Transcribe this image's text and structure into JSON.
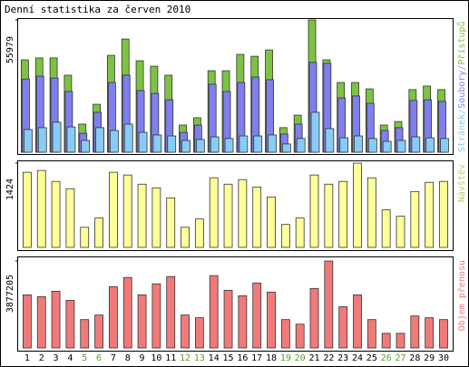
{
  "chart_data": [
    {
      "type": "bar",
      "title": "Denní statistika za červen 2010",
      "legend_separator": "/",
      "ylim": [
        0,
        55979
      ],
      "yticks": [
        55979
      ],
      "series": [
        {
          "name": "Přístupů",
          "color": "#7dc242",
          "values": [
            39100,
            39900,
            39900,
            32600,
            11900,
            20300,
            41000,
            47900,
            38700,
            36400,
            32600,
            11500,
            14600,
            34500,
            34500,
            41400,
            40600,
            43300,
            10400,
            15700,
            55979,
            39100,
            29500,
            29500,
            26800,
            11500,
            13000,
            26500,
            28000,
            26500
          ]
        },
        {
          "name": "Soubory",
          "color": "#7f7ff0",
          "values": [
            31000,
            32200,
            31400,
            25700,
            8000,
            16900,
            29500,
            32600,
            26100,
            24900,
            22200,
            8400,
            11500,
            28800,
            25700,
            29500,
            31800,
            30700,
            7700,
            11900,
            38000,
            37600,
            23000,
            23800,
            20700,
            9200,
            10400,
            21900,
            22200,
            21500
          ]
        },
        {
          "name": "Stránek",
          "color": "#88ccf4",
          "values": [
            9600,
            10400,
            12700,
            10700,
            5000,
            10400,
            9200,
            11900,
            8400,
            7300,
            6900,
            5000,
            5400,
            6500,
            5800,
            6900,
            6900,
            7300,
            3500,
            5800,
            16900,
            10000,
            6100,
            6900,
            5800,
            4600,
            5000,
            6500,
            6100,
            5800
          ]
        }
      ]
    },
    {
      "type": "bar",
      "ylim": [
        0,
        1424
      ],
      "yticks": [
        1424
      ],
      "series": [
        {
          "name": "Návštěv",
          "color": "#ffff99",
          "label_color": "#c8c860",
          "values": [
            1269,
            1300,
            1115,
            991,
            340,
            496,
            1269,
            1223,
            1068,
            1006,
            836,
            340,
            480,
            1176,
            1068,
            1145,
            1021,
            852,
            387,
            496,
            1223,
            1068,
            1115,
            1424,
            1176,
            635,
            526,
            944,
            1099,
            1115
          ]
        }
      ]
    },
    {
      "type": "bar",
      "ylim": [
        0,
        3877205
      ],
      "yticks": [
        3877205
      ],
      "categories": [
        "1",
        "2",
        "3",
        "4",
        "5",
        "6",
        "7",
        "8",
        "9",
        "10",
        "11",
        "12",
        "13",
        "14",
        "15",
        "16",
        "17",
        "18",
        "19",
        "20",
        "21",
        "22",
        "23",
        "24",
        "25",
        "26",
        "27",
        "28",
        "29",
        "30"
      ],
      "category_colors": [
        "#000",
        "#000",
        "#000",
        "#000",
        "#5a9e28",
        "#5a9e28",
        "#000",
        "#000",
        "#000",
        "#000",
        "#000",
        "#5a9e28",
        "#5a9e28",
        "#000",
        "#000",
        "#000",
        "#000",
        "#000",
        "#5a9e28",
        "#5a9e28",
        "#000",
        "#000",
        "#000",
        "#000",
        "#000",
        "#5a9e28",
        "#5a9e28",
        "#000",
        "#000",
        "#000"
      ],
      "series": [
        {
          "name": "Objem přenosu",
          "color": "#f07a7a",
          "values": [
            2367000,
            2286000,
            2530000,
            2122000,
            1265000,
            1469000,
            2734000,
            3143000,
            2367000,
            2857000,
            3183000,
            1469000,
            1347000,
            3224000,
            2571000,
            2326000,
            2898000,
            2490000,
            1265000,
            1061000,
            2653000,
            3877205,
            1837000,
            2367000,
            1265000,
            653000,
            653000,
            1428000,
            1347000,
            1265000
          ]
        }
      ]
    }
  ]
}
